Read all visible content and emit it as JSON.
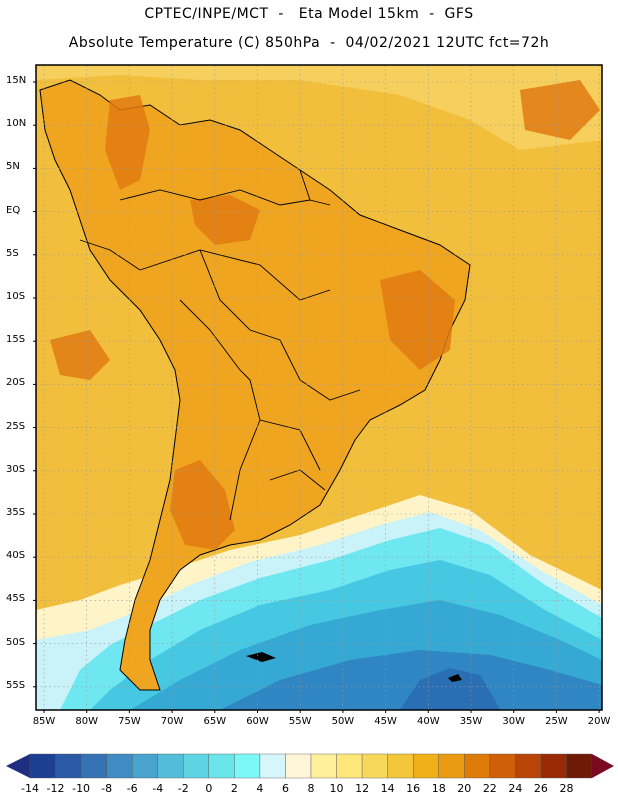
{
  "title_line1": "CPTEC/INPE/MCT  -   Eta Model 15km  -  GFS",
  "title_line2": "Absolute Temperature (C) 850hPa  -  04/02/2021 12UTC fct=72h",
  "lat_labels": [
    "15N",
    "10N",
    "5N",
    "EQ",
    "5S",
    "10S",
    "15S",
    "20S",
    "25S",
    "30S",
    "35S",
    "40S",
    "45S",
    "50S",
    "55S"
  ],
  "lon_labels": [
    "85W",
    "80W",
    "75W",
    "70W",
    "65W",
    "60W",
    "55W",
    "50W",
    "45W",
    "40W",
    "35W",
    "30W",
    "25W",
    "20W"
  ],
  "colorbar": {
    "labels": [
      "-14",
      "-12",
      "-10",
      "-8",
      "-6",
      "-4",
      "-2",
      "0",
      "2",
      "4",
      "6",
      "8",
      "10",
      "12",
      "14",
      "16",
      "18",
      "20",
      "22",
      "24",
      "26",
      "28"
    ],
    "colors": [
      "#1d3f91",
      "#2a5aa6",
      "#3573b5",
      "#3f8cc3",
      "#48a4cf",
      "#52bcd9",
      "#5ed3e2",
      "#6ae6ea",
      "#7cf8f8",
      "#d6f6fb",
      "#fff6d8",
      "#fff09a",
      "#fde77a",
      "#f8d85a",
      "#f4c63a",
      "#f0b018",
      "#e99a10",
      "#de7c0a",
      "#cf5f08",
      "#b84407",
      "#9a2a06",
      "#6e1a06"
    ],
    "low_color": "#1f2f80",
    "high_color": "#7a0a22"
  },
  "map": {
    "colors": {
      "frame": "#000000",
      "grid": "#999999",
      "ocean_north": "#f2bf3d",
      "land": "#efa51f",
      "hot": "#e07a12",
      "very_hot": "#d46a10",
      "gulf": "#f6cf5c",
      "cream": "#fff3c8",
      "pale_cyan": "#c9f3f8",
      "cyan": "#6ee7f0",
      "light_blue": "#46c8e2",
      "mid_blue": "#35a9d3",
      "blue": "#2f86c2",
      "deep_blue": "#2a6eb4"
    }
  }
}
